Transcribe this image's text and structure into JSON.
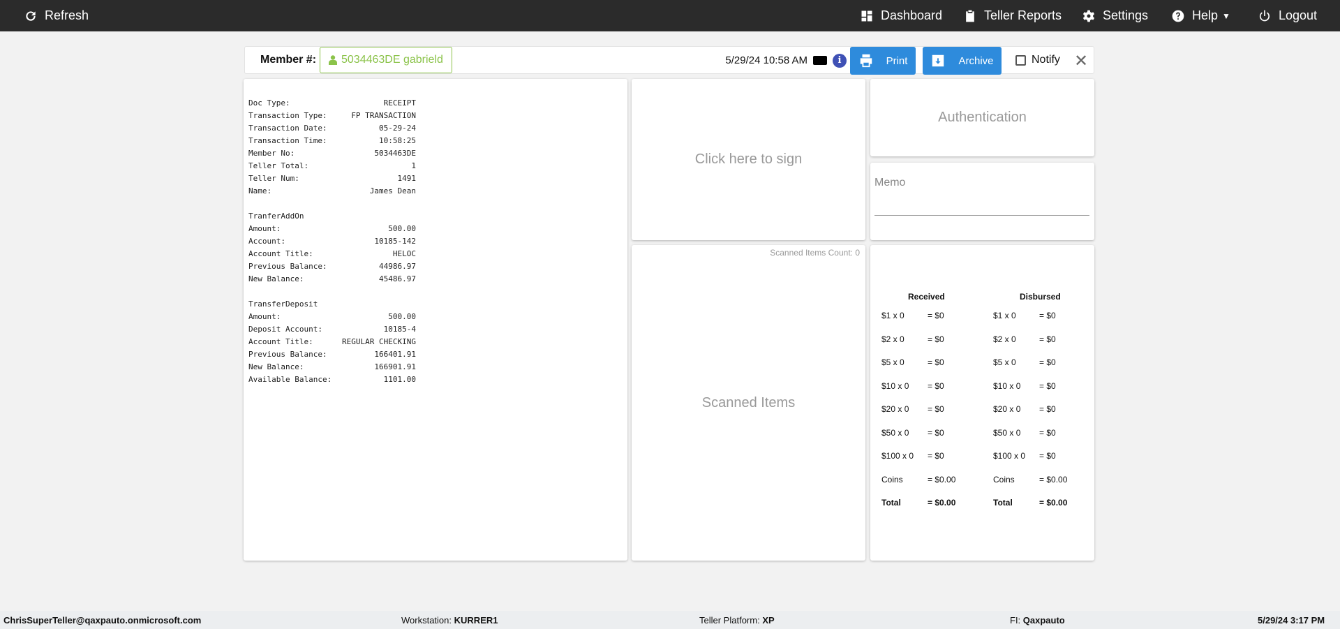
{
  "topbar": {
    "refresh": "Refresh",
    "dashboard": "Dashboard",
    "teller_reports": "Teller Reports",
    "settings": "Settings",
    "help": "Help",
    "logout": "Logout"
  },
  "member": {
    "label": "Member #:",
    "value": "5034463DE gabrield",
    "datetime": "5/29/24 10:58 AM",
    "print": "Print",
    "archive": "Archive",
    "notify": "Notify",
    "accent": "#8bc34a",
    "button_color": "#2e8bdc"
  },
  "receipt": [
    [
      "Doc Type:",
      "RECEIPT"
    ],
    [
      "Transaction Type:",
      "FP TRANSACTION"
    ],
    [
      "Transaction Date:",
      "05-29-24"
    ],
    [
      "Transaction Time:",
      "10:58:25"
    ],
    [
      "Member No:",
      "5034463DE"
    ],
    [
      "Teller Total:",
      "1"
    ],
    [
      "Teller Num:",
      "1491"
    ],
    [
      "Name:",
      "James Dean"
    ],
    [
      "",
      ""
    ],
    [
      "TranferAddOn",
      ""
    ],
    [
      "Amount:",
      "500.00"
    ],
    [
      "Account:",
      "10185-142"
    ],
    [
      "Account Title:",
      "HELOC"
    ],
    [
      "Previous Balance:",
      "44986.97"
    ],
    [
      "New Balance:",
      "45486.97"
    ],
    [
      "",
      ""
    ],
    [
      "TransferDeposit",
      ""
    ],
    [
      "Amount:",
      "500.00"
    ],
    [
      "Deposit Account:",
      "10185-4"
    ],
    [
      "Account Title:",
      "REGULAR CHECKING"
    ],
    [
      "Previous Balance:",
      "166401.91"
    ],
    [
      "New Balance:",
      "166901.91"
    ],
    [
      "Available Balance:",
      "1101.00"
    ]
  ],
  "sign": "Click here to sign",
  "scanned": {
    "count_label": "Scanned Items Count: 0",
    "title": "Scanned Items"
  },
  "auth": "Authentication",
  "memo": "Memo",
  "cash": {
    "received": {
      "title": "Received",
      "rows": [
        [
          "$1 x 0",
          "= $0"
        ],
        [
          "$2 x 0",
          "= $0"
        ],
        [
          "$5 x 0",
          "= $0"
        ],
        [
          "$10 x 0",
          "= $0"
        ],
        [
          "$20 x 0",
          "= $0"
        ],
        [
          "$50 x 0",
          "= $0"
        ],
        [
          "$100 x 0",
          "= $0"
        ],
        [
          "Coins",
          "= $0.00"
        ],
        [
          "Total",
          "= $0.00"
        ]
      ]
    },
    "disbursed": {
      "title": "Disbursed",
      "rows": [
        [
          "$1 x 0",
          "= $0"
        ],
        [
          "$2 x 0",
          "= $0"
        ],
        [
          "$5 x 0",
          "= $0"
        ],
        [
          "$10 x 0",
          "= $0"
        ],
        [
          "$20 x 0",
          "= $0"
        ],
        [
          "$50 x 0",
          "= $0"
        ],
        [
          "$100 x 0",
          "= $0"
        ],
        [
          "Coins",
          "= $0.00"
        ],
        [
          "Total",
          "= $0.00"
        ]
      ]
    }
  },
  "footer": {
    "user": "ChrisSuperTeller@qaxpauto.onmicrosoft.com",
    "workstation_label": "Workstation:",
    "workstation": "KURRER1",
    "platform_label": "Teller Platform:",
    "platform": "XP",
    "fi_label": "FI:",
    "fi": "Qaxpauto",
    "datetime": "5/29/24 3:17 PM"
  }
}
